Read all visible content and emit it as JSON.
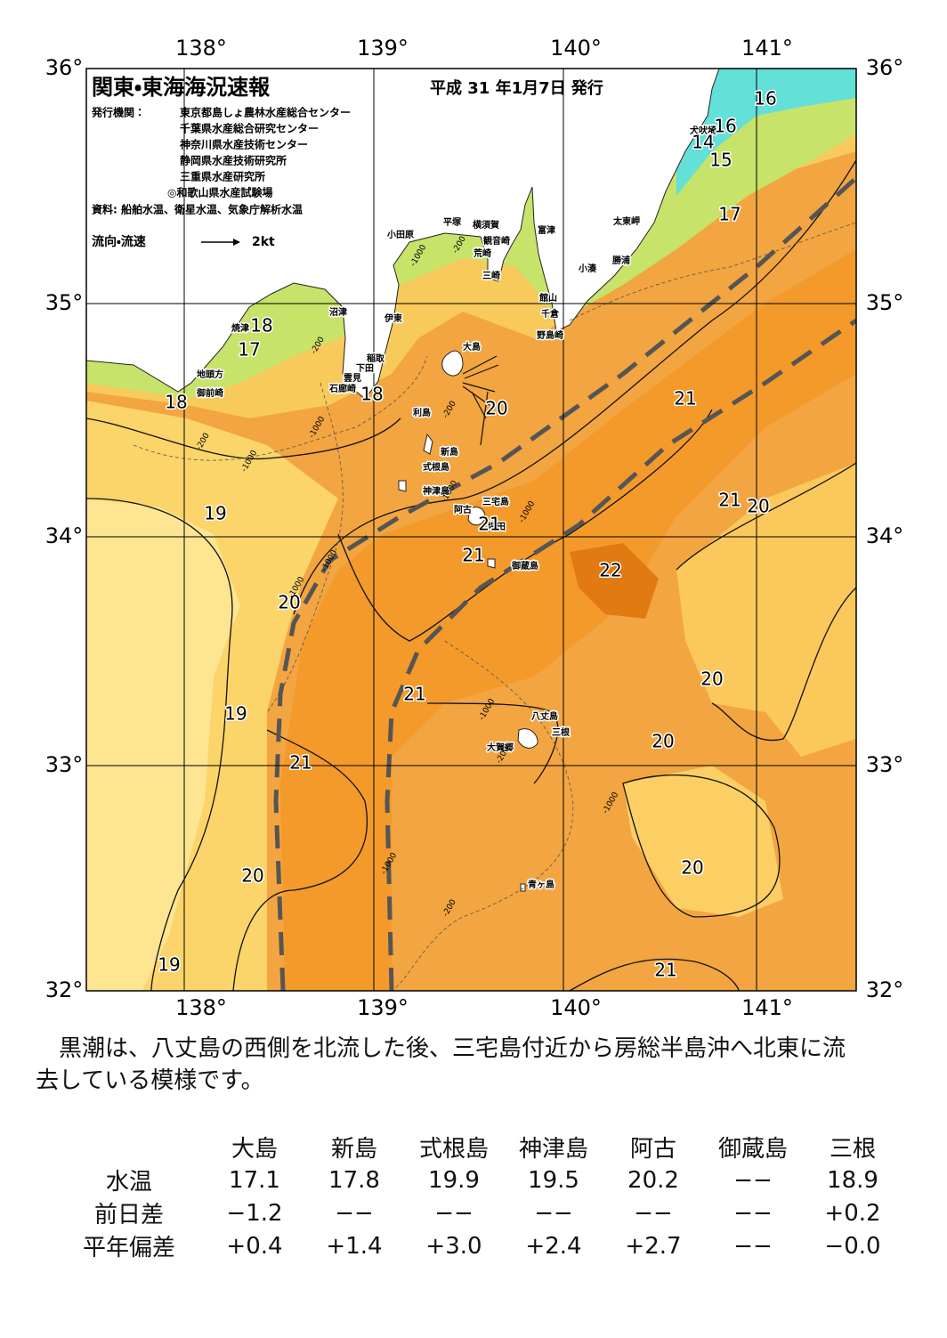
{
  "header": {
    "title": "関東・東海海況速報",
    "date": "平成 31 年1月7日 発行",
    "issuer_label": "発行機関：",
    "issuers": [
      "東京都島しょ農林水産総合センター",
      "千葉県水産総合研究センター",
      "神奈川県水産技術センター",
      "静岡県水産技術研究所",
      "三重県水産研究所",
      "◎和歌山県水産試験場"
    ],
    "source": "資料: 船舶水温、衛星水温、気象庁解析水温",
    "legend_label": "流向・流速",
    "legend_speed": "2kt"
  },
  "map": {
    "lon_labels": [
      "138°",
      "139°",
      "140°",
      "141°"
    ],
    "lat_labels": [
      "36°",
      "35°",
      "34°",
      "33°",
      "32°"
    ],
    "places": [
      "大島",
      "新島",
      "式根島",
      "神津島",
      "三宅島",
      "阿古",
      "坪田",
      "御蔵島",
      "八丈島",
      "三根",
      "大賀郷",
      "青ヶ島",
      "利島",
      "小田原",
      "平塚",
      "横須賀",
      "観音崎",
      "荒崎",
      "三崎",
      "富津",
      "館山",
      "千倉",
      "野島崎",
      "太東岬",
      "勝浦",
      "小湊",
      "犬吠埼",
      "沼津",
      "伊東",
      "焼津",
      "稲取",
      "下田",
      "雲見",
      "石廊崎",
      "地頭方",
      "御前崎"
    ],
    "temperature_labels": [
      "16",
      "16",
      "14",
      "15",
      "17",
      "18",
      "17",
      "18",
      "18",
      "20",
      "21",
      "19",
      "21",
      "21",
      "20",
      "21",
      "22",
      "20",
      "21",
      "20",
      "19",
      "20",
      "21",
      "20",
      "20",
      "19",
      "21"
    ],
    "depth_labels": [
      "-200",
      "-200",
      "-1000",
      "-200",
      "-1000",
      "-1000",
      "-200",
      "-1000",
      "-1000",
      "-1000",
      "-1000",
      "-200",
      "-1000",
      "-1000",
      "-1000",
      "-200"
    ]
  },
  "description": [
    "黒潮は、八丈島の西側を北流した後、三宅島付近から房総半島沖へ北東に流",
    "去している模様です。"
  ],
  "table": {
    "columns": [
      "大島",
      "新島",
      "式根島",
      "神津島",
      "阿古",
      "御蔵島",
      "三根"
    ],
    "rows": [
      {
        "label": "水温",
        "cells": [
          "17.1",
          "17.8",
          "19.9",
          "19.5",
          "20.2",
          "−−",
          "18.9"
        ]
      },
      {
        "label": "前日差",
        "cells": [
          "−1.2",
          "−−",
          "−−",
          "−−",
          "−−",
          "−−",
          "+0.2"
        ]
      },
      {
        "label": "平年偏差",
        "cells": [
          "+0.4",
          "+1.4",
          "+3.0",
          "+2.4",
          "+2.7",
          "−−",
          "−0.0"
        ]
      }
    ]
  }
}
